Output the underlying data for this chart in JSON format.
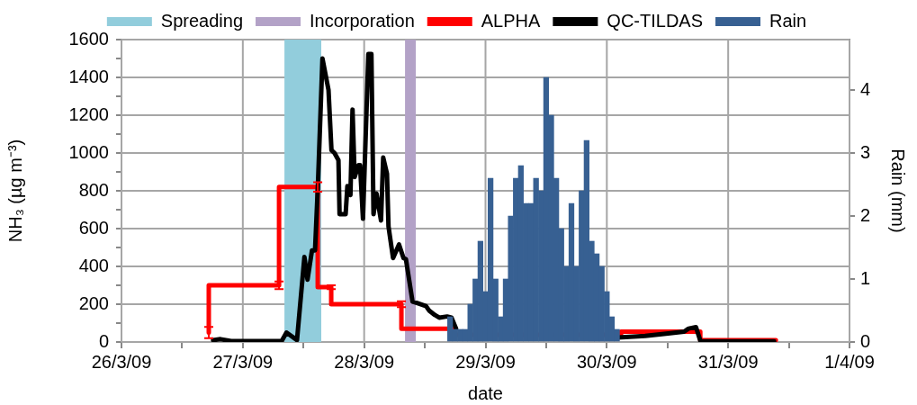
{
  "chart_data": {
    "type": "line",
    "xlabel": "date",
    "ylabel": "NH₃ (µg m⁻³)",
    "y2label": "Rain (mm)",
    "legend": "top",
    "grid": true,
    "marker": "none",
    "xlim": [
      "--03-26",
      "--04-01"
    ],
    "xticks": [
      {
        "value": "--03-26",
        "label": "26/3/09"
      },
      {
        "value": "--03-26T12:00",
        "label": null
      },
      {
        "value": "--03-27",
        "label": "27/3/09"
      },
      {
        "value": "--03-27T12:00",
        "label": null
      },
      {
        "value": "--03-28",
        "label": "28/3/09"
      },
      {
        "value": "--03-28T12:00",
        "label": null
      },
      {
        "value": "--03-29",
        "label": "29/3/09"
      },
      {
        "value": "--03-29T12:00",
        "label": null
      },
      {
        "value": "--03-30",
        "label": "30/3/09"
      },
      {
        "value": "--03-30T12:00",
        "label": null
      },
      {
        "value": "--03-31",
        "label": "31/3/09"
      },
      {
        "value": "--03-31T12:00",
        "label": null
      },
      {
        "value": "--04-01",
        "label": "1/4/09"
      }
    ],
    "ylim": [
      0,
      1600
    ],
    "yticks": [
      0,
      {
        "value": 100,
        "label": null
      },
      200,
      {
        "value": 300,
        "label": null
      },
      400,
      {
        "value": 500,
        "label": null
      },
      600,
      {
        "value": 700,
        "label": null
      },
      800,
      {
        "value": 900,
        "label": null
      },
      1000,
      {
        "value": 1100,
        "label": null
      },
      1200,
      {
        "value": 1300,
        "label": null
      },
      1400,
      {
        "value": 1500,
        "label": null
      },
      1600
    ],
    "y2lim": [
      0,
      4.8
    ],
    "y2ticks": [
      0,
      1,
      2,
      3,
      4
    ],
    "bands": [
      {
        "axis": "x",
        "from": "--03-27T08:14",
        "to": "--03-27T15:31",
        "label": "Spreading",
        "color": "#92cddc"
      },
      {
        "axis": "x",
        "from": "--03-28T08:05",
        "to": "--03-28T10:13",
        "label": "Incorporation",
        "color": "#b3a2c7"
      }
    ],
    "series": [
      {
        "name": "ALPHA",
        "type": "step",
        "color": "#ff0000",
        "x": [
          "--03-26T17:16",
          "--03-27T07:10",
          "--03-27T14:49",
          "--03-27T17:29",
          "--03-28T07:22",
          "--03-28T17:31",
          "--03-30T02:48",
          "--03-30T18:29",
          "--03-31T07:18",
          "--03-31T09:26"
        ],
        "values": [
          50,
          300,
          820,
          290,
          200,
          70,
          38,
          55,
          10,
          10
        ],
        "errors": [
          30,
          20,
          25,
          10,
          15,
          null,
          null,
          null,
          null,
          null
        ]
      },
      {
        "name": "QC-TILDAS",
        "color": "#000000",
        "x": [
          "--03-26T18:07",
          "--03-26T19:35",
          "--03-26T21:43",
          "--03-27T07:41",
          "--03-27T08:38",
          "--03-27T10:43",
          "--03-27T12:11",
          "--03-27T12:48",
          "--03-27T13:41",
          "--03-27T14:17",
          "--03-27T14:52",
          "--03-27T15:45",
          "--03-27T16:57",
          "--03-27T17:32",
          "--03-27T18:08",
          "--03-27T18:55",
          "--03-27T19:08",
          "--03-27T20:20",
          "--03-27T20:41",
          "--03-27T21:17",
          "--03-27T21:42",
          "--03-27T22:07",
          "--03-27T22:53",
          "--03-27T23:11",
          "--03-27T23:46",
          "--03-28T00:50",
          "--03-28T01:26",
          "--03-28T01:51",
          "--03-28T02:26",
          "--03-28T03:20",
          "--03-28T03:46",
          "--03-28T04:31",
          "--03-28T04:49",
          "--03-28T05:43",
          "--03-28T06:53",
          "--03-28T07:47",
          "--03-28T08:16",
          "--03-28T09:34",
          "--03-28T10:27",
          "--03-28T12:14",
          "--03-28T12:50",
          "--03-28T13:58",
          "--03-28T14:51",
          "--03-28T16:24",
          "--03-28T17:17",
          "--03-28T18:11",
          "--03-29T12:00",
          "--03-30T02:13",
          "--03-30T07:34",
          "--03-30T11:43",
          "--03-30T15:17",
          "--03-30T16:10",
          "--03-30T17:38",
          "--03-30T18:32",
          "--03-31T09:05"
        ],
        "values": [
          10,
          15,
          5,
          5,
          50,
          10,
          450,
          330,
          485,
          485,
          840,
          1500,
          1333,
          1015,
          1000,
          962,
          676,
          676,
          825,
          778,
          1230,
          873,
          936,
          936,
          652,
          1524,
          1524,
          676,
          786,
          643,
          976,
          890,
          611,
          444,
          516,
          444,
          438,
          214,
          206,
          190,
          167,
          143,
          129,
          135,
          129,
          71,
          null,
          24,
          32,
          44,
          55,
          71,
          79,
          3,
          3
        ]
      },
      {
        "name": "Rain",
        "type": "bar",
        "axis": "y2",
        "color": "#376092",
        "x": [
          "--03-28T17:00",
          "--03-28T18:00",
          "--03-28T19:00",
          "--03-28T20:00",
          "--03-28T21:00",
          "--03-28T22:00",
          "--03-28T23:00",
          "--03-29T00:00",
          "--03-29T01:00",
          "--03-29T02:00",
          "--03-29T03:00",
          "--03-29T04:00",
          "--03-29T05:00",
          "--03-29T06:00",
          "--03-29T07:00",
          "--03-29T08:00",
          "--03-29T09:00",
          "--03-29T10:00",
          "--03-29T11:00",
          "--03-29T12:00",
          "--03-29T13:00",
          "--03-29T14:00",
          "--03-29T15:00",
          "--03-29T16:00",
          "--03-29T17:00",
          "--03-29T18:00",
          "--03-29T19:00",
          "--03-29T20:00",
          "--03-29T21:00",
          "--03-29T22:00",
          "--03-29T23:00",
          "--03-30T00:00",
          "--03-30T01:00",
          "--03-30T02:00"
        ],
        "values": [
          0.4,
          0.2,
          0.2,
          0.2,
          0.6,
          1.0,
          1.6,
          0.8,
          2.6,
          1.0,
          0.4,
          1.0,
          2.0,
          2.6,
          2.8,
          2.2,
          2.2,
          2.6,
          2.4,
          4.2,
          3.6,
          2.6,
          1.8,
          1.2,
          2.2,
          1.2,
          2.4,
          3.2,
          1.6,
          1.4,
          1.2,
          0.8,
          0.4,
          0.2
        ]
      }
    ]
  }
}
